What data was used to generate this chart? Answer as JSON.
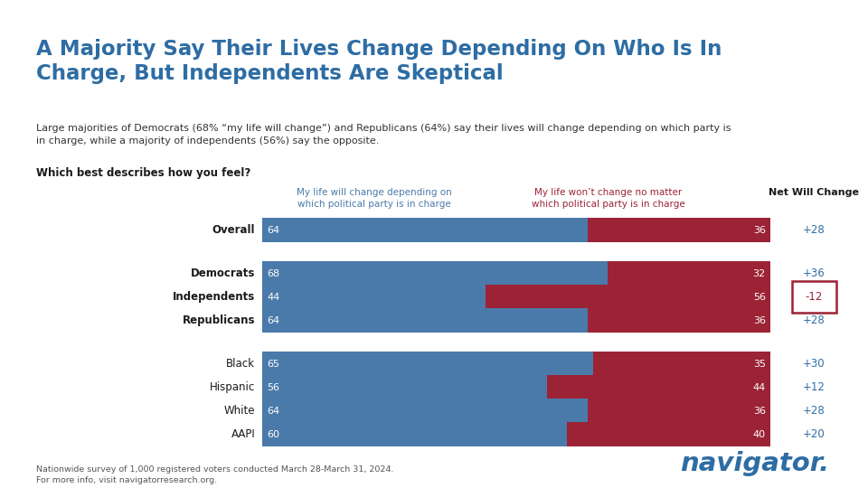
{
  "title": "A Majority Say Their Lives Change Depending On Who Is In\nCharge, But Independents Are Skeptical",
  "subtitle": "Large majorities of Democrats (68% “my life will change”) and Republicans (64%) say their lives will change depending on which party is\nin charge, while a majority of independents (56%) say the opposite.",
  "question": "Which best describes how you feel?",
  "legend_left": "My life will change depending on\nwhich political party is in charge",
  "legend_right": "My life won’t change no matter\nwhich political party is in charge",
  "net_label": "Net Will Change",
  "footnote": "Nationwide survey of 1,000 registered voters conducted March 28-March 31, 2024.\nFor more info, visit navigatorresearch.org.",
  "categories": [
    "Overall",
    "",
    "Democrats",
    "Independents",
    "Republicans",
    "",
    "Black",
    "Hispanic",
    "White",
    "AAPI"
  ],
  "will_change": [
    64,
    null,
    68,
    44,
    64,
    null,
    65,
    56,
    64,
    60
  ],
  "wont_change": [
    36,
    null,
    32,
    56,
    36,
    null,
    35,
    44,
    36,
    40
  ],
  "net": [
    "+28",
    null,
    "+36",
    "-12",
    "+28",
    null,
    "+30",
    "+12",
    "+28",
    "+20"
  ],
  "bold_categories": [
    "Overall",
    "Democrats",
    "Independents",
    "Republicans"
  ],
  "bar_color_blue": "#4a7aaa",
  "bar_color_red": "#9b2335",
  "title_color": "#2e6da4",
  "text_color": "#1a1a1a",
  "subtitle_color": "#333333",
  "net_positive_color": "#2e6da4",
  "net_negative_color": "#9b2335",
  "background_color": "#ffffff",
  "top_bar_color": "#5b8db8",
  "navigator_color": "#2e6da4"
}
